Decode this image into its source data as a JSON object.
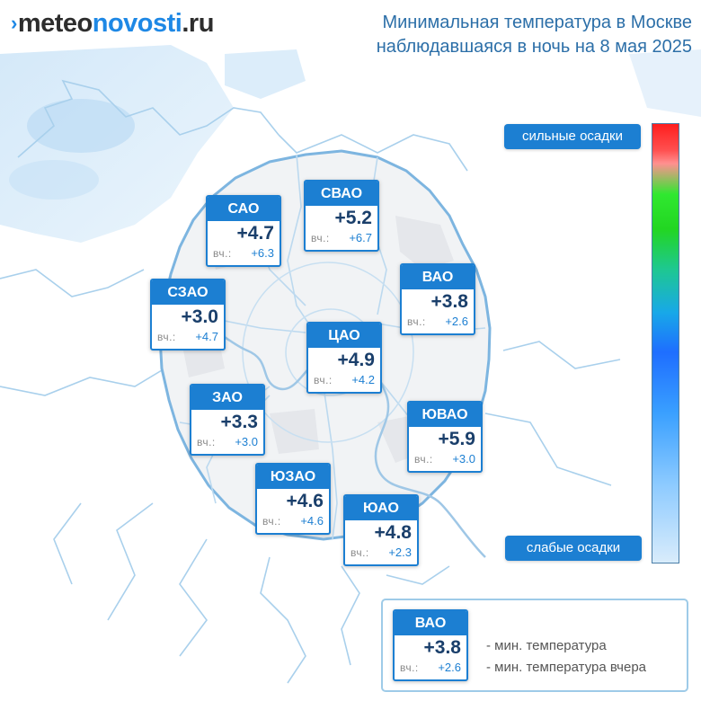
{
  "header": {
    "logo_part_a": "meteo",
    "logo_part_b": "novosti",
    "logo_part_c": ".ru",
    "title_line1": "Минимальная температура в Москве",
    "title_line2": "наблюдавшаяся в ночь на 8 мая 2025"
  },
  "districts": [
    {
      "name": "САО",
      "now": "+4.7",
      "prev_label": "вч.:",
      "prev": "+6.3"
    },
    {
      "name": "СВАО",
      "now": "+5.2",
      "prev_label": "вч.:",
      "prev": "+6.7"
    },
    {
      "name": "ВАО",
      "now": "+3.8",
      "prev_label": "вч.:",
      "prev": "+2.6"
    },
    {
      "name": "СЗАО",
      "now": "+3.0",
      "prev_label": "вч.:",
      "prev": "+4.7"
    },
    {
      "name": "ЦАО",
      "now": "+4.9",
      "prev_label": "вч.:",
      "prev": "+4.2"
    },
    {
      "name": "ЗАО",
      "now": "+3.3",
      "prev_label": "вч.:",
      "prev": "+3.0"
    },
    {
      "name": "ЮВАО",
      "now": "+5.9",
      "prev_label": "вч.:",
      "prev": "+3.0"
    },
    {
      "name": "ЮЗАО",
      "now": "+4.6",
      "prev_label": "вч.:",
      "prev": "+4.6"
    },
    {
      "name": "ЮАО",
      "now": "+4.8",
      "prev_label": "вч.:",
      "prev": "+2.3"
    }
  ],
  "scale": {
    "top_label": "сильные осадки",
    "bottom_label": "слабые осадки"
  },
  "legend": {
    "sample": {
      "name": "ВАО",
      "now": "+3.8",
      "prev_label": "вч.:",
      "prev": "+2.6"
    },
    "line1": "- мин. температура",
    "line2": "- мин. температура вчера"
  },
  "colors": {
    "accent_blue": "#1c7fd2",
    "title_blue": "#2c6fa8",
    "value_dark": "#1a3f6b",
    "boundary": "#8fc0e4"
  }
}
